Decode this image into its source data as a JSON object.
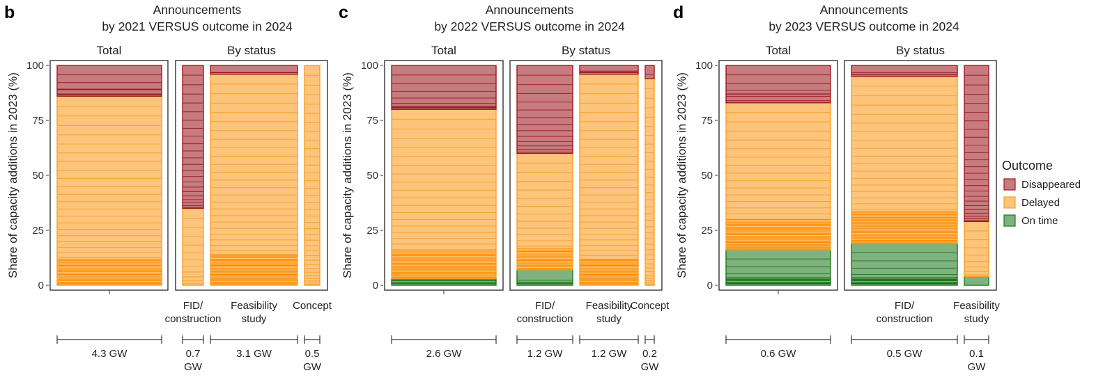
{
  "colors": {
    "disappeared": {
      "fill": "#c67b7f",
      "line": "#9d1a22",
      "line_dense": "#8a1016"
    },
    "delayed": {
      "fill": "#fdc47c",
      "line": "#f7a02a",
      "line_dense": "#ff8c00"
    },
    "on_time": {
      "fill": "#7fb27f",
      "line": "#1e7a1e",
      "line_dense": "#0a6a0a"
    }
  },
  "legend": {
    "title": "Outcome",
    "items": [
      {
        "key": "disappeared",
        "label": "Disappeared"
      },
      {
        "key": "delayed",
        "label": "Delayed"
      },
      {
        "key": "on_time",
        "label": "On time"
      }
    ]
  },
  "chart_data": [
    {
      "type": "stacked bar",
      "panel_label": "b",
      "title": [
        "Announcements",
        "by 2021 VERSUS outcome in 2024"
      ],
      "ylabel": "Share of capacity additions in 2023 (%)",
      "yticks": [
        0,
        25,
        50,
        75,
        100
      ],
      "ylim": [
        0,
        100
      ],
      "sections": [
        {
          "header": "Total",
          "bars": [
            {
              "label": "",
              "gw": "4.3 GW",
              "on_time": 0,
              "delayed": 86,
              "disappeared": 14,
              "lines": [
                {
                  "at": 89,
                  "k": "disappeared"
                }
              ],
              "dense": [
                {
                  "k": "delayed",
                  "from": 0,
                  "to": 12
                },
                {
                  "k": "disappeared",
                  "from": 86,
                  "to": 87
                }
              ]
            }
          ]
        },
        {
          "header": "By status",
          "bars": [
            {
              "label": "FID/\nconstruction",
              "gw": "0.7\nGW",
              "on_time": 0,
              "delayed": 35,
              "disappeared": 65,
              "lines": [],
              "dense": []
            },
            {
              "label": "Feasibility\nstudy",
              "gw": "3.1 GW",
              "on_time": 0,
              "delayed": 96,
              "disappeared": 4,
              "lines": [],
              "dense": [
                {
                  "k": "delayed",
                  "from": 0,
                  "to": 14
                },
                {
                  "k": "disappeared",
                  "from": 96,
                  "to": 97
                }
              ]
            },
            {
              "label": "Concept",
              "gw": "0.5\nGW",
              "on_time": 0,
              "delayed": 100,
              "disappeared": 0,
              "lines": [],
              "dense": []
            }
          ]
        }
      ]
    },
    {
      "type": "stacked bar",
      "panel_label": "c",
      "title": [
        "Announcements",
        "by 2022 VERSUS outcome in 2024"
      ],
      "ylabel": "Share of capacity additions in 2023 (%)",
      "yticks": [
        0,
        25,
        50,
        75,
        100
      ],
      "ylim": [
        0,
        100
      ],
      "sections": [
        {
          "header": "Total",
          "bars": [
            {
              "label": "",
              "gw": "2.6 GW",
              "on_time": 3,
              "delayed": 77,
              "disappeared": 20,
              "lines": [],
              "dense": [
                {
                  "k": "on_time",
                  "from": 0,
                  "to": 3
                },
                {
                  "k": "delayed",
                  "from": 3,
                  "to": 16
                },
                {
                  "k": "disappeared",
                  "from": 80,
                  "to": 82
                }
              ]
            }
          ]
        },
        {
          "header": "By status",
          "bars": [
            {
              "label": "FID/\nconstruction",
              "gw": "1.2 GW",
              "on_time": 7,
              "delayed": 53,
              "disappeared": 40,
              "lines": [],
              "dense": [
                {
                  "k": "on_time",
                  "from": 0,
                  "to": 2
                },
                {
                  "k": "delayed",
                  "from": 7,
                  "to": 17
                }
              ]
            },
            {
              "label": "Feasibility\nstudy",
              "gw": "1.2 GW",
              "on_time": 0,
              "delayed": 96,
              "disappeared": 4,
              "lines": [],
              "dense": [
                {
                  "k": "delayed",
                  "from": 0,
                  "to": 12
                },
                {
                  "k": "disappeared",
                  "from": 96,
                  "to": 98
                }
              ]
            },
            {
              "label": "Concept",
              "gw": "0.2\nGW",
              "on_time": 0,
              "delayed": 94,
              "disappeared": 6,
              "lines": [],
              "dense": []
            }
          ]
        }
      ]
    },
    {
      "type": "stacked bar",
      "panel_label": "d",
      "title": [
        "Announcements",
        "by 2023 VERSUS outcome in 2024"
      ],
      "ylabel": "Share of capacity additions in 2023 (%)",
      "yticks": [
        0,
        25,
        50,
        75,
        100
      ],
      "ylim": [
        0,
        100
      ],
      "sections": [
        {
          "header": "Total",
          "bars": [
            {
              "label": "",
              "gw": "0.6 GW",
              "on_time": 16,
              "delayed": 67,
              "disappeared": 17,
              "lines": [
                {
                  "at": 87,
                  "k": "disappeared"
                }
              ],
              "dense": [
                {
                  "k": "on_time",
                  "from": 0,
                  "to": 4
                },
                {
                  "k": "delayed",
                  "from": 16,
                  "to": 30
                }
              ]
            }
          ]
        },
        {
          "header": "By status",
          "bars": [
            {
              "label": "FID/\nconstruction",
              "gw": "0.5 GW",
              "on_time": 19,
              "delayed": 76,
              "disappeared": 5,
              "lines": [],
              "dense": [
                {
                  "k": "on_time",
                  "from": 0,
                  "to": 4
                },
                {
                  "k": "delayed",
                  "from": 19,
                  "to": 34
                },
                {
                  "k": "disappeared",
                  "from": 95,
                  "to": 96
                }
              ]
            },
            {
              "label": "Feasibility\nstudy",
              "gw": "0.1\nGW",
              "on_time": 4,
              "delayed": 25,
              "disappeared": 71,
              "lines": [],
              "dense": []
            }
          ]
        }
      ]
    }
  ]
}
